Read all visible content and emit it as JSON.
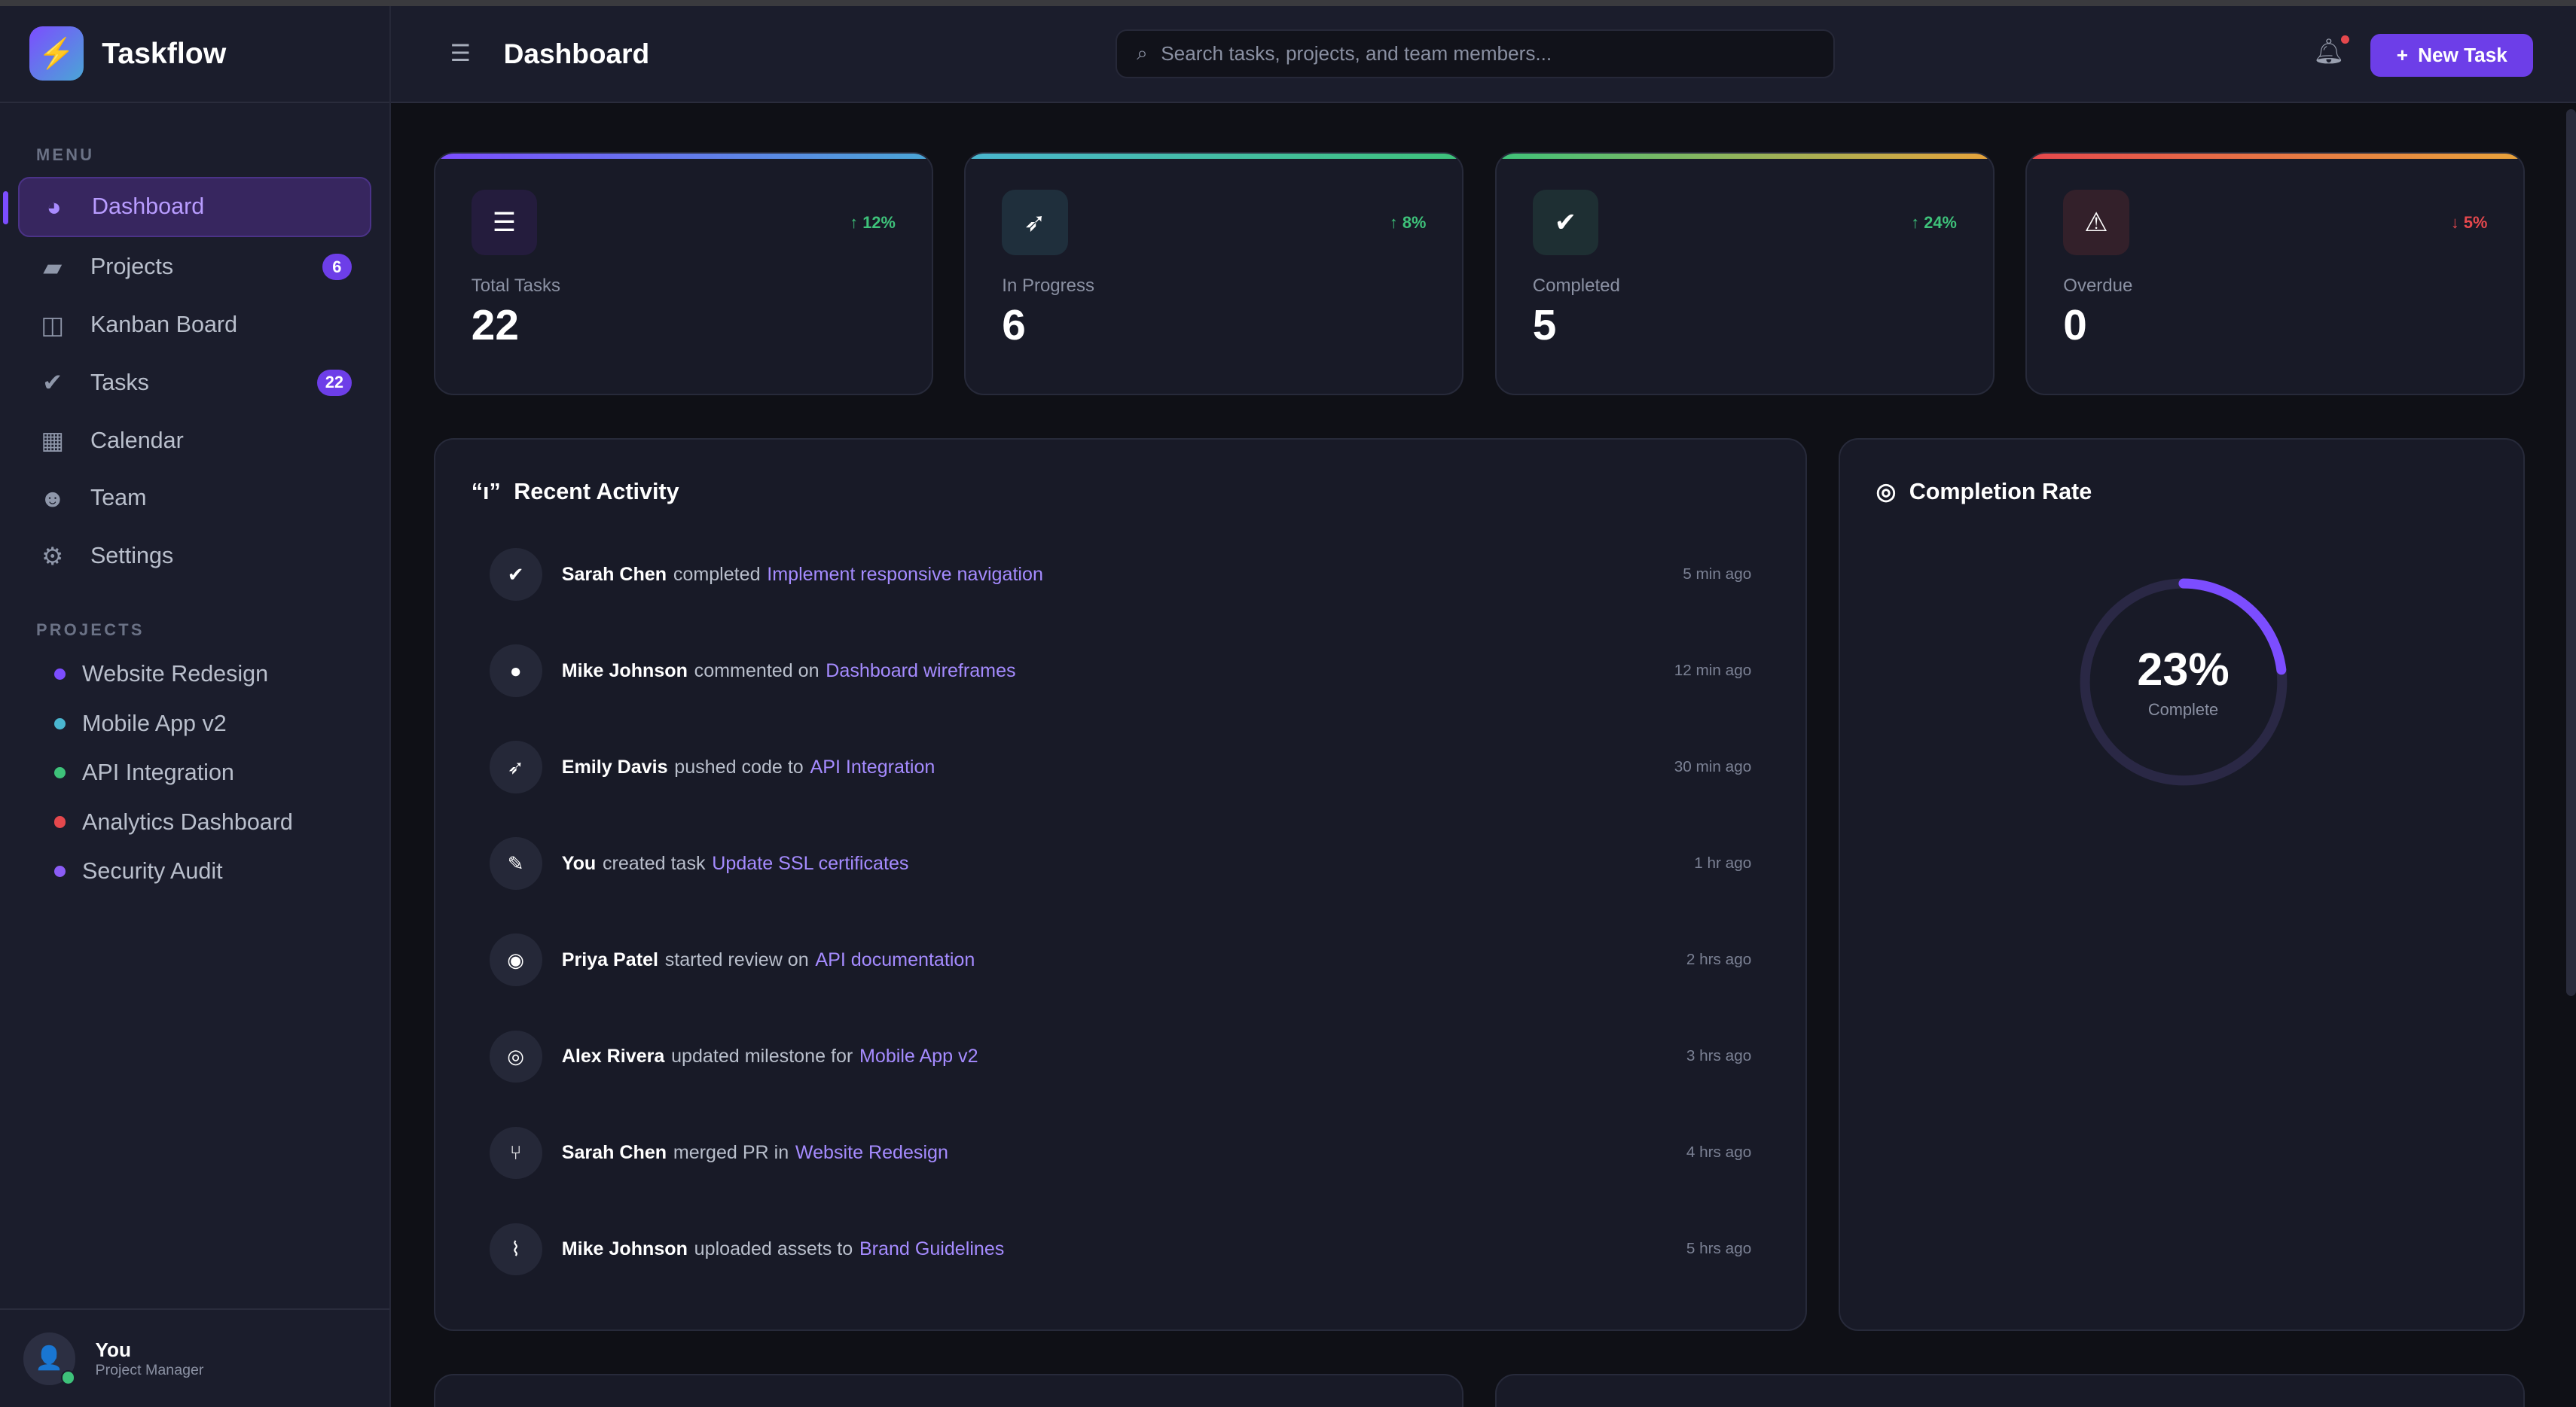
{
  "app": {
    "name": "Taskflow",
    "logo_icon": "lightning-icon"
  },
  "sidebar": {
    "menu_label": "MENU",
    "items": [
      {
        "label": "Dashboard",
        "icon": "pie-chart-icon",
        "glyph": "◕",
        "active": true
      },
      {
        "label": "Projects",
        "icon": "folder-open-icon",
        "glyph": "▰",
        "badge": "6"
      },
      {
        "label": "Kanban Board",
        "icon": "columns-icon",
        "glyph": "◫"
      },
      {
        "label": "Tasks",
        "icon": "check-circle-icon",
        "glyph": "✔"
      },
      {
        "label": "Calendar",
        "icon": "calendar-icon",
        "glyph": "▦"
      },
      {
        "label": "Team",
        "icon": "users-icon",
        "glyph": "☻"
      },
      {
        "label": "Settings",
        "icon": "gear-icon",
        "glyph": "⚙"
      }
    ],
    "tasks_badge": "22",
    "projects_label": "PROJECTS",
    "projects": [
      {
        "name": "Website Redesign",
        "color": "#7c4dff"
      },
      {
        "name": "Mobile App v2",
        "color": "#4ab6d0"
      },
      {
        "name": "API Integration",
        "color": "#3ec27a"
      },
      {
        "name": "Analytics Dashboard",
        "color": "#e5484d"
      },
      {
        "name": "Security Audit",
        "color": "#8b5cf6"
      }
    ],
    "user": {
      "name": "You",
      "role": "Project Manager"
    }
  },
  "header": {
    "title": "Dashboard",
    "search_placeholder": "Search tasks, projects, and team members...",
    "new_task": "New Task"
  },
  "stats": [
    {
      "label": "Total Tasks",
      "value": "22",
      "trend": "↑ 12%",
      "trend_dir": "up",
      "icon": "list-check-icon",
      "glyph": "☰",
      "bar": "linear-gradient(90deg,#7c4dff,#4aa6d6)",
      "icon_bg": "#241c3d"
    },
    {
      "label": "In Progress",
      "value": "6",
      "trend": "↑ 8%",
      "trend_dir": "up",
      "icon": "rocket-icon",
      "glyph": "➶",
      "bar": "linear-gradient(90deg,#4ab6d0,#3ec27a)",
      "icon_bg": "#1f2f3c"
    },
    {
      "label": "Completed",
      "value": "5",
      "trend": "↑ 24%",
      "trend_dir": "up",
      "icon": "check-circle-icon",
      "glyph": "✔",
      "bar": "linear-gradient(90deg,#3ec27a,#e8a33b)",
      "icon_bg": "#1e2f33"
    },
    {
      "label": "Overdue",
      "value": "0",
      "trend": "↓ 5%",
      "trend_dir": "down",
      "icon": "warning-icon",
      "glyph": "⚠",
      "bar": "linear-gradient(90deg,#e5484d,#e8a33b)",
      "icon_bg": "#33202a"
    }
  ],
  "activity": {
    "title": "Recent Activity",
    "items": [
      {
        "who": "Sarah Chen",
        "action": "completed",
        "target": "Implement responsive navigation",
        "time": "5 min ago",
        "icon": "check-circle-icon",
        "glyph": "✔"
      },
      {
        "who": "Mike Johnson",
        "action": "commented on",
        "target": "Dashboard wireframes",
        "time": "12 min ago",
        "icon": "comment-icon",
        "glyph": "●"
      },
      {
        "who": "Emily Davis",
        "action": "pushed code to",
        "target": "API Integration",
        "time": "30 min ago",
        "icon": "rocket-icon",
        "glyph": "➶"
      },
      {
        "who": "You",
        "action": "created task",
        "target": "Update SSL certificates",
        "time": "1 hr ago",
        "icon": "edit-icon",
        "glyph": "✎"
      },
      {
        "who": "Priya Patel",
        "action": "started review on",
        "target": "API documentation",
        "time": "2 hrs ago",
        "icon": "eye-icon",
        "glyph": "◉"
      },
      {
        "who": "Alex Rivera",
        "action": "updated milestone for",
        "target": "Mobile App v2",
        "time": "3 hrs ago",
        "icon": "target-icon",
        "glyph": "◎"
      },
      {
        "who": "Sarah Chen",
        "action": "merged PR in",
        "target": "Website Redesign",
        "time": "4 hrs ago",
        "icon": "git-branch-icon",
        "glyph": "⑂"
      },
      {
        "who": "Mike Johnson",
        "action": "uploaded assets to",
        "target": "Brand Guidelines",
        "time": "5 hrs ago",
        "icon": "paperclip-icon",
        "glyph": "⌇"
      }
    ]
  },
  "completion": {
    "title": "Completion Rate",
    "percent": 23,
    "value_text": "23%",
    "sub": "Complete",
    "color": "#7c4dff"
  }
}
